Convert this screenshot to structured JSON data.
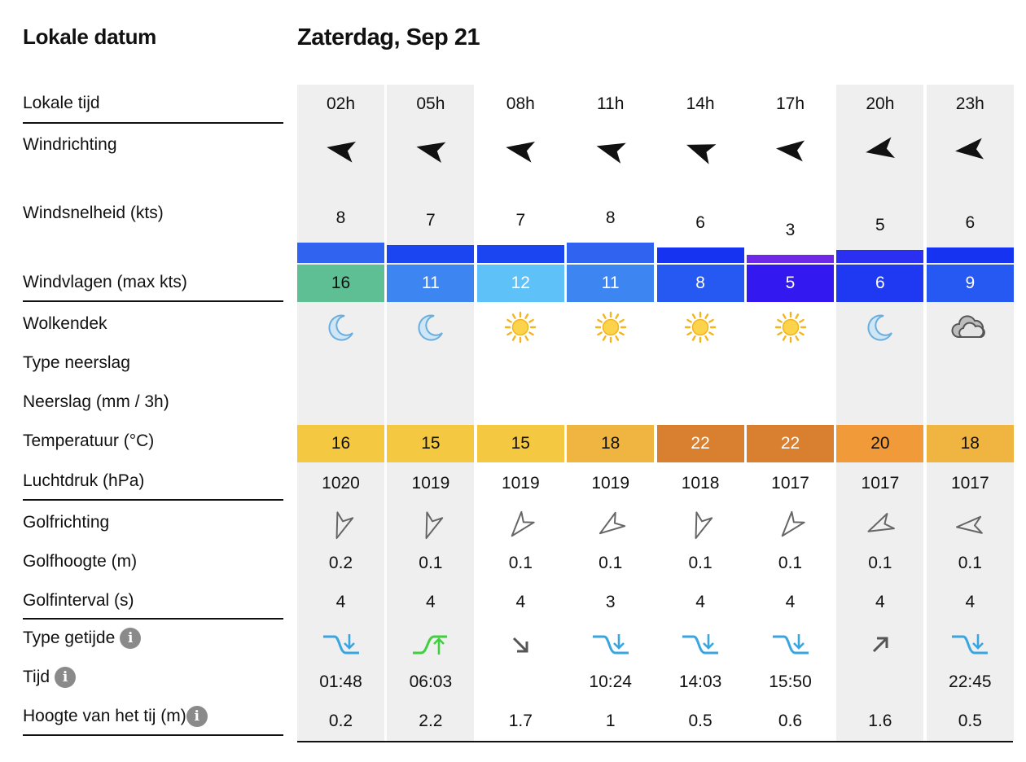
{
  "header": {
    "left_title": "Lokale datum",
    "date": "Zaterdag, Sep 21"
  },
  "labels": {
    "local_time": "Lokale tijd",
    "wind_direction": "Windrichting",
    "wind_speed": "Windsnelheid (kts)",
    "wind_gusts": "Windvlagen (max kts)",
    "cloud_cover": "Wolkendek",
    "precip_type": "Type neerslag",
    "precip": "Neerslag (mm / 3h)",
    "temperature": "Temperatuur (°C)",
    "pressure": "Luchtdruk (hPa)",
    "wave_direction": "Golfrichting",
    "wave_height": "Golfhoogte (m)",
    "wave_interval": "Golfinterval (s)",
    "tide_type": "Type getijde",
    "tide_time": "Tijd",
    "tide_height": "Hoogte van het tij (m)"
  },
  "info_glyph": "i",
  "columns": [
    {
      "time": "02h",
      "wind_dir_deg": -80,
      "wind_speed": "8",
      "wind_color": "#2f63f0",
      "gust": "16",
      "gust_color": "#5fbf94",
      "cloud": "moon",
      "temp": "16",
      "temp_color": "#f5c842",
      "temp_text": "#111",
      "pressure": "1020",
      "wave_dir_deg": 200,
      "wave_height": "0.2",
      "wave_interval": "4",
      "tide": "falling",
      "tide_time": "01:48",
      "tide_height": "0.2"
    },
    {
      "time": "05h",
      "wind_dir_deg": -78,
      "wind_speed": "7",
      "wind_color": "#1c45f2",
      "gust": "11",
      "gust_color": "#3d86f2",
      "cloud": "moon",
      "temp": "15",
      "temp_color": "#f5c842",
      "temp_text": "#111",
      "pressure": "1019",
      "wave_dir_deg": 200,
      "wave_height": "0.1",
      "wave_interval": "4",
      "tide": "rising",
      "tide_time": "06:03",
      "tide_height": "2.2"
    },
    {
      "time": "08h",
      "wind_dir_deg": -80,
      "wind_speed": "7",
      "wind_color": "#1c45f2",
      "gust": "12",
      "gust_color": "#5ec1f7",
      "cloud": "sun",
      "temp": "15",
      "temp_color": "#f5c842",
      "temp_text": "#111",
      "pressure": "1019",
      "wave_dir_deg": 220,
      "wave_height": "0.1",
      "wave_interval": "4",
      "tide": "down-arrow",
      "tide_time": "",
      "tide_height": "1.7"
    },
    {
      "time": "11h",
      "wind_dir_deg": -75,
      "wind_speed": "8",
      "wind_color": "#2f63f0",
      "gust": "11",
      "gust_color": "#3d86f2",
      "cloud": "sun",
      "temp": "18",
      "temp_color": "#f0b440",
      "temp_text": "#111",
      "pressure": "1019",
      "wave_dir_deg": 235,
      "wave_height": "0.1",
      "wave_interval": "3",
      "tide": "falling",
      "tide_time": "10:24",
      "tide_height": "1"
    },
    {
      "time": "14h",
      "wind_dir_deg": -70,
      "wind_speed": "6",
      "wind_color": "#1633f2",
      "gust": "8",
      "gust_color": "#2658f2",
      "cloud": "sun",
      "temp": "22",
      "temp_color": "#d98030",
      "temp_text": "#fff",
      "pressure": "1018",
      "wave_dir_deg": 200,
      "wave_height": "0.1",
      "wave_interval": "4",
      "tide": "falling",
      "tide_time": "14:03",
      "tide_height": "0.5"
    },
    {
      "time": "17h",
      "wind_dir_deg": -85,
      "wind_speed": "3",
      "wind_color": "#6d28e8",
      "gust": "5",
      "gust_color": "#3418f0",
      "cloud": "sun",
      "temp": "22",
      "temp_color": "#d98030",
      "temp_text": "#fff",
      "pressure": "1017",
      "wave_dir_deg": 220,
      "wave_height": "0.1",
      "wave_interval": "4",
      "tide": "falling",
      "tide_time": "15:50",
      "tide_height": "0.6"
    },
    {
      "time": "20h",
      "wind_dir_deg": -100,
      "wind_speed": "5",
      "wind_color": "#2b2ff2",
      "gust": "6",
      "gust_color": "#1f38f2",
      "cloud": "moon",
      "temp": "20",
      "temp_color": "#f09a3a",
      "temp_text": "#111",
      "pressure": "1017",
      "wave_dir_deg": 245,
      "wave_height": "0.1",
      "wave_interval": "4",
      "tide": "up-arrow",
      "tide_time": "",
      "tide_height": "1.6"
    },
    {
      "time": "23h",
      "wind_dir_deg": -95,
      "wind_speed": "6",
      "wind_color": "#1633f2",
      "gust": "9",
      "gust_color": "#2658f2",
      "cloud": "cloud",
      "temp": "18",
      "temp_color": "#f0b440",
      "temp_text": "#111",
      "pressure": "1017",
      "wave_dir_deg": 265,
      "wave_height": "0.1",
      "wave_interval": "4",
      "tide": "falling",
      "tide_time": "22:45",
      "tide_height": "0.5"
    }
  ]
}
